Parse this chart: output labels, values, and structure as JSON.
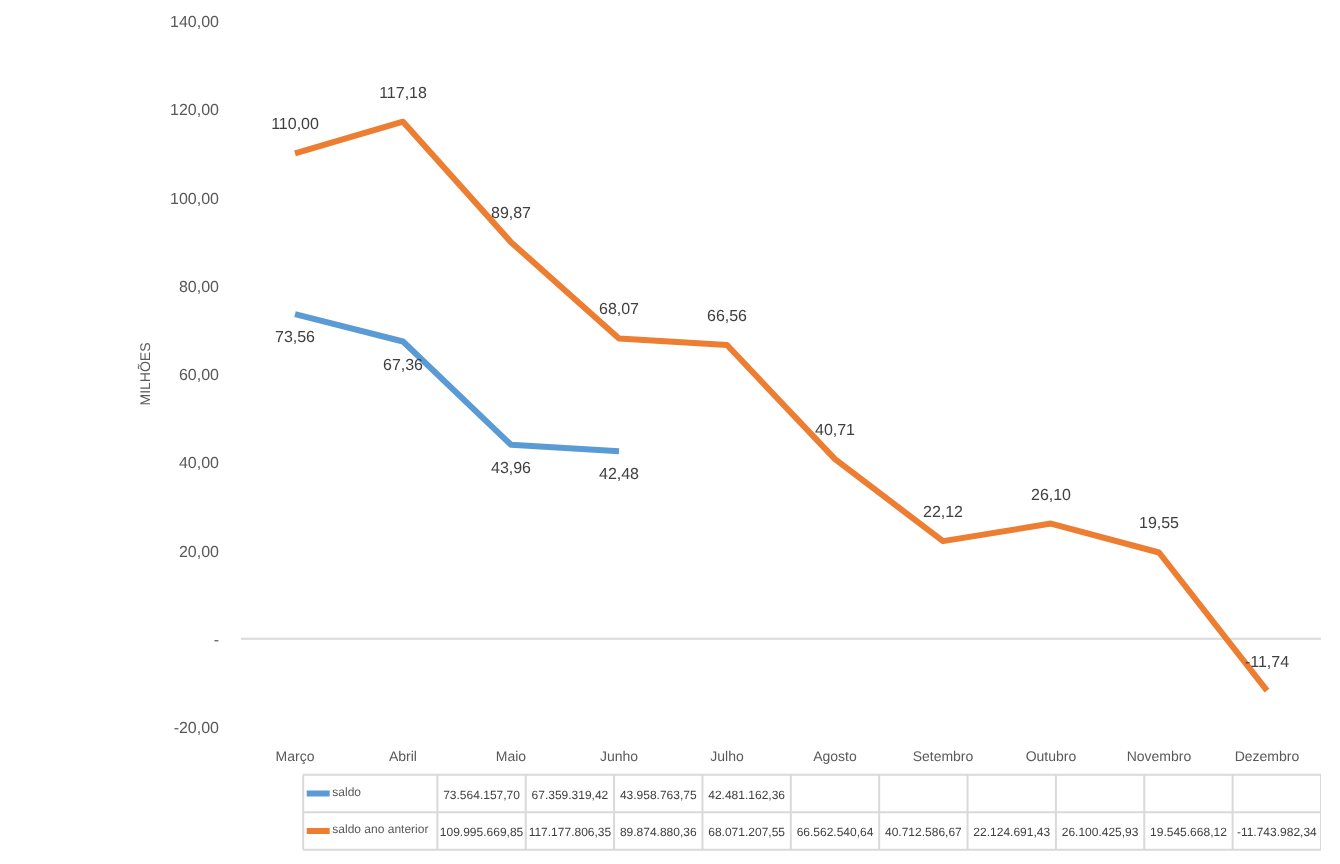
{
  "chart_data": {
    "type": "line",
    "ylabel": "MILHÕES",
    "categories": [
      "Março",
      "Abril",
      "Maio",
      "Junho",
      "Julho",
      "Agosto",
      "Setembro",
      "Outubro",
      "Novembro",
      "Dezembro"
    ],
    "series": [
      {
        "name": "saldo",
        "color": "#5b9bd5",
        "values": [
          73.56,
          67.36,
          43.96,
          42.48,
          null,
          null,
          null,
          null,
          null,
          null
        ],
        "value_labels": [
          "73,56",
          "67,36",
          "43,96",
          "42,48",
          null,
          null,
          null,
          null,
          null,
          null
        ]
      },
      {
        "name": "saldo ano anterior",
        "color": "#ed7d31",
        "values": [
          110.0,
          117.18,
          89.87,
          68.07,
          66.56,
          40.71,
          22.12,
          26.1,
          19.55,
          -11.74
        ],
        "value_labels": [
          "110,00",
          "117,18",
          "89,87",
          "68,07",
          "66,56",
          "40,71",
          "22,12",
          "26,10",
          "19,55",
          "-11,74"
        ]
      }
    ],
    "annotations": [
      "73.564.157,70",
      "67.359.319,42",
      "43.958.763,75",
      "42.481.162,36",
      "109.995.669,85",
      "117.177.806,35",
      "89.874.880,36",
      "68.071.207,55",
      "66.562.540,64",
      "40.712.586,67",
      "22.124.691,43",
      "26.100.425,93",
      "19.545.668,12",
      "-11.743.982,34"
    ],
    "ylim": [
      -20,
      140
    ],
    "yticks": [
      {
        "value": -20,
        "label": "-20,00"
      },
      {
        "value": 0,
        "label": "-"
      },
      {
        "value": 20,
        "label": "20,00"
      },
      {
        "value": 40,
        "label": "40,00"
      },
      {
        "value": 60,
        "label": "60,00"
      },
      {
        "value": 80,
        "label": "80,00"
      },
      {
        "value": 100,
        "label": "100,00"
      },
      {
        "value": 120,
        "label": "120,00"
      },
      {
        "value": 140,
        "label": "140,00"
      }
    ],
    "ref_lines": [
      {
        "axis": "y",
        "value": 0,
        "color": "#d9d9d9"
      }
    ],
    "legend": "bottom",
    "marker": "none",
    "line_style": "solid",
    "data_labels": true
  }
}
